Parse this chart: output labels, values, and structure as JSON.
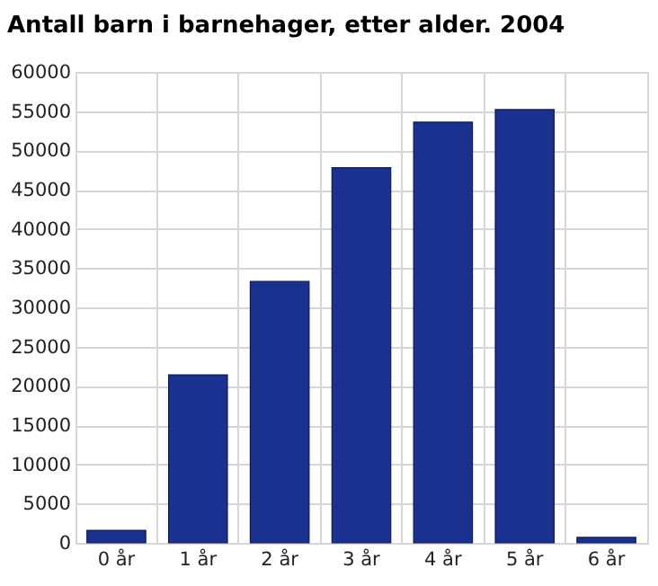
{
  "chart_data": {
    "type": "bar",
    "title": "Antall barn i barnehager, etter alder. 2004",
    "categories": [
      "0 år",
      "1 år",
      "2 år",
      "3 år",
      "4 år",
      "5 år",
      "6 år"
    ],
    "values": [
      1600,
      21400,
      33300,
      47800,
      53600,
      55200,
      700
    ],
    "color": "#1a318f",
    "ylim": [
      0,
      60000
    ],
    "yticks": [
      0,
      5000,
      10000,
      15000,
      20000,
      25000,
      30000,
      35000,
      40000,
      45000,
      50000,
      55000,
      60000
    ],
    "grid": true
  }
}
